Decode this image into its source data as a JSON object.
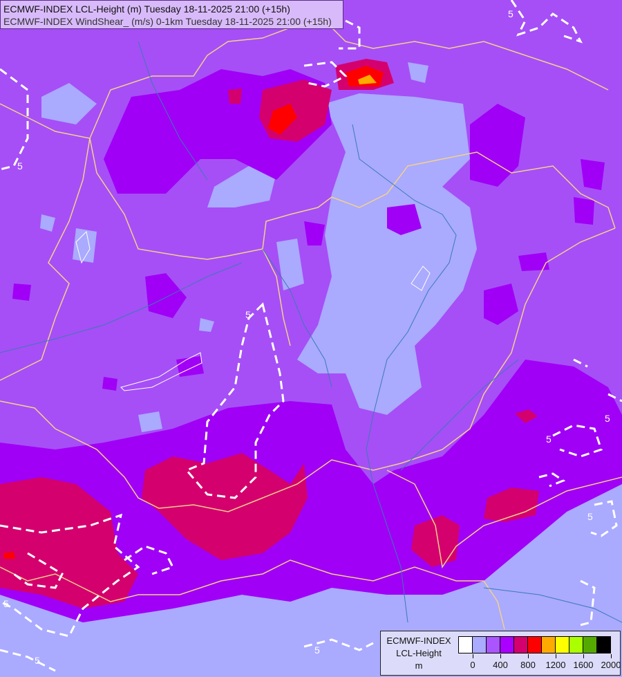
{
  "header": {
    "line1": "ECMWF-INDEX LCL-Height (m) Tuesday 18-11-2025 21:00 (+15h)",
    "line2": "ECMWF-INDEX WindShear_ (m/s) 0-1km Tuesday 18-11-2025 21:00 (+15h)"
  },
  "legend": {
    "title1": "ECMWF-INDEX",
    "title2": "LCL-Height",
    "unit": "m",
    "colors": [
      "#ffffff",
      "#aaaaff",
      "#aa55ff",
      "#aa00ff",
      "#d4006e",
      "#ff0000",
      "#ffaa00",
      "#ffff00",
      "#aaff00",
      "#55aa00",
      "#000000"
    ],
    "ticks": [
      "0",
      "400",
      "800",
      "1200",
      "1600",
      "2000"
    ]
  },
  "contours": {
    "windshear_label": "5",
    "line_color": "#ffffff",
    "border_color": "#f2d28a",
    "river_color": "#3a7ab8"
  }
}
